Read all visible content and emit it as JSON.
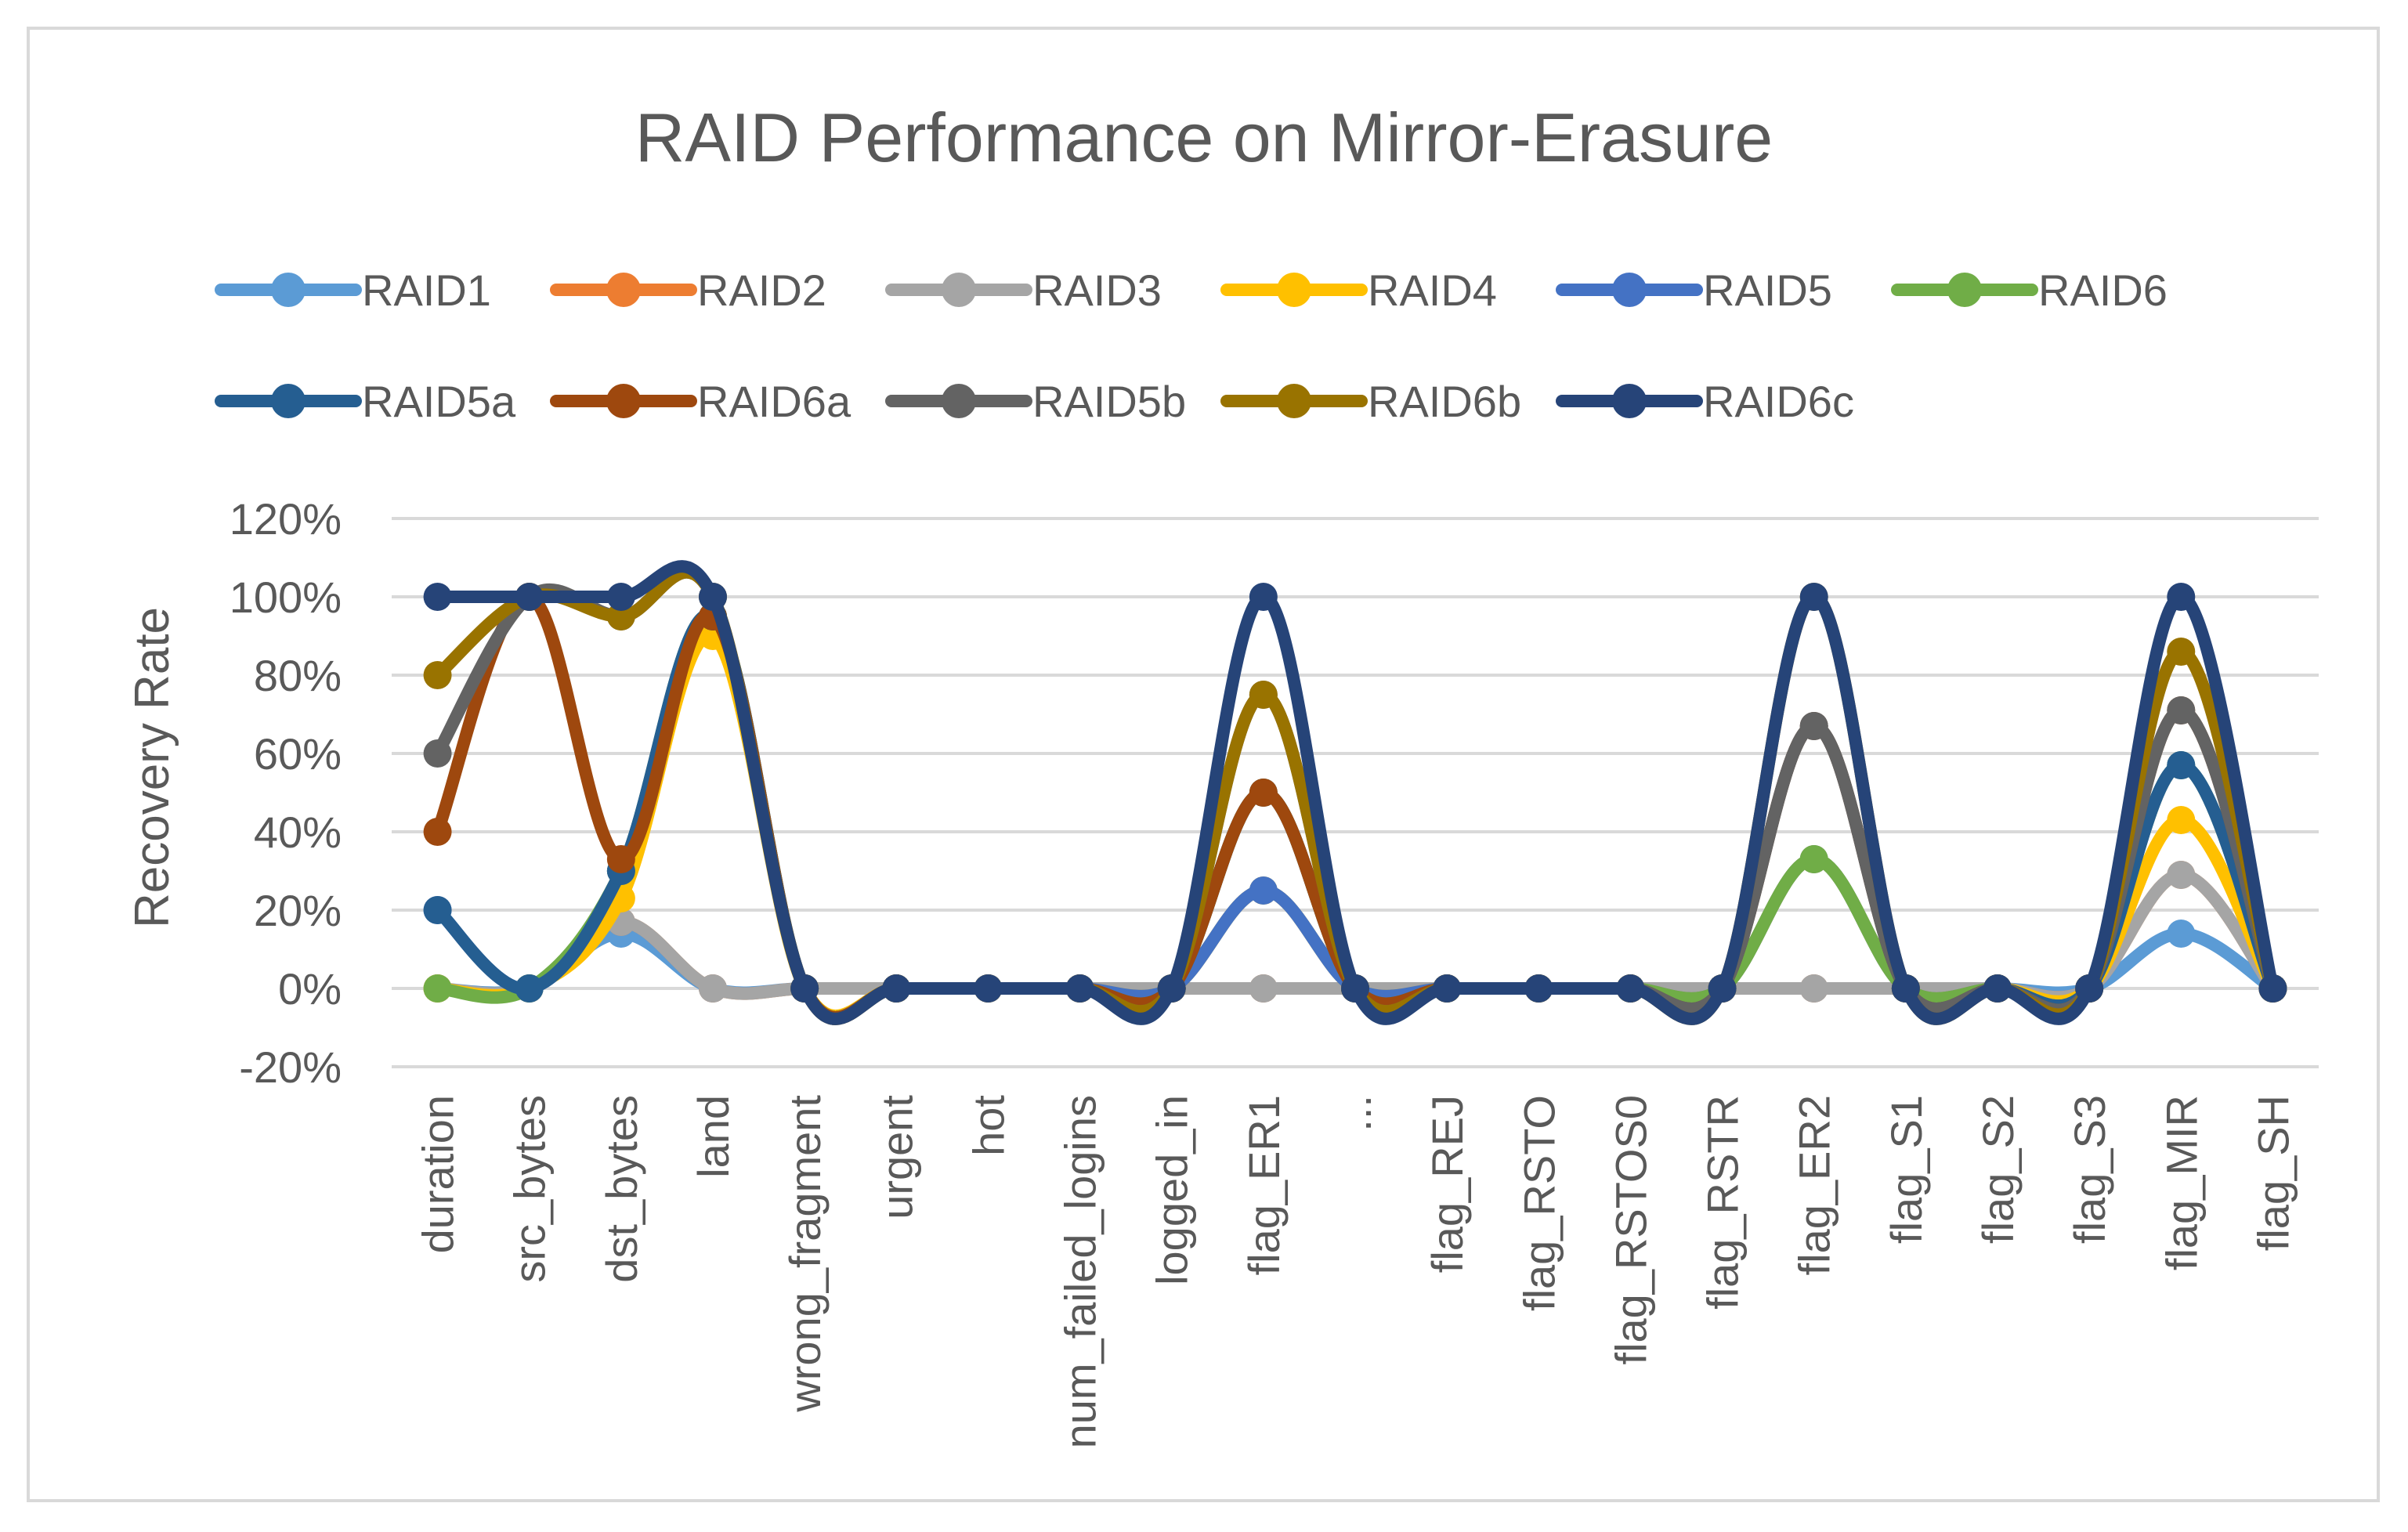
{
  "chart_data": {
    "type": "line",
    "title": "RAID Performance on Mirror-Erasure",
    "xlabel": "",
    "ylabel": "Recovery Rate",
    "ylim": [
      -0.2,
      1.2
    ],
    "yticks": [
      -0.2,
      0,
      0.2,
      0.4,
      0.6,
      0.8,
      1.0,
      1.2
    ],
    "ytick_labels": [
      "-20%",
      "0%",
      "20%",
      "40%",
      "60%",
      "80%",
      "100%",
      "120%"
    ],
    "grid": true,
    "legend_position": "top",
    "categories": [
      "duration",
      "src_bytes",
      "dst_bytes",
      "land",
      "wrong_fragment",
      "urgent",
      "hot",
      "num_failed_logins",
      "logged_in",
      "flag_ER1",
      "...",
      "flag_REJ",
      "flag_RSTO",
      "flag_RSTOS0",
      "flag_RSTR",
      "flag_ER2",
      "flag_S1",
      "flag_S2",
      "flag_S3",
      "flag_MIR",
      "flag_SH"
    ],
    "series": [
      {
        "name": "RAID1",
        "color": "#5B9BD5",
        "values": [
          0,
          0,
          0.14,
          0,
          0,
          0,
          0,
          0,
          0,
          0,
          0,
          0,
          0,
          0,
          0,
          0,
          0,
          0,
          0,
          0.14,
          0
        ]
      },
      {
        "name": "RAID2",
        "color": "#ED7D31",
        "values": [
          0,
          0,
          0.17,
          0,
          0,
          0,
          0,
          0,
          0,
          0,
          0,
          0,
          0,
          0,
          0,
          0,
          0,
          0,
          0,
          0.29,
          0
        ]
      },
      {
        "name": "RAID3",
        "color": "#A5A5A5",
        "values": [
          0,
          0,
          0.17,
          0,
          0,
          0,
          0,
          0,
          0,
          0,
          0,
          0,
          0,
          0,
          0,
          0,
          0,
          0,
          0,
          0.29,
          0
        ]
      },
      {
        "name": "RAID4",
        "color": "#FFC000",
        "values": [
          0,
          0,
          0.23,
          0.9,
          0,
          0,
          0,
          0,
          0,
          0.25,
          0,
          0,
          0,
          0,
          0,
          0.33,
          0,
          0,
          0,
          0.43,
          0
        ]
      },
      {
        "name": "RAID5",
        "color": "#4472C4",
        "values": [
          0.2,
          0,
          0.3,
          0.95,
          0,
          0,
          0,
          0,
          0,
          0.25,
          0,
          0,
          0,
          0,
          0,
          0.33,
          0,
          0,
          0,
          0.57,
          0
        ]
      },
      {
        "name": "RAID6",
        "color": "#70AD47",
        "values": [
          0,
          0,
          0.3,
          0.95,
          0,
          0,
          0,
          0,
          0,
          0.5,
          0,
          0,
          0,
          0,
          0,
          0.33,
          0,
          0,
          0,
          0.57,
          0
        ]
      },
      {
        "name": "RAID5a",
        "color": "#255E91",
        "values": [
          0.2,
          0,
          0.3,
          0.95,
          0,
          0,
          0,
          0,
          0,
          0.5,
          0,
          0,
          0,
          0,
          0,
          0.67,
          0,
          0,
          0,
          0.57,
          0
        ]
      },
      {
        "name": "RAID6a",
        "color": "#9E480E",
        "values": [
          0.4,
          1.0,
          0.33,
          0.95,
          0,
          0,
          0,
          0,
          0,
          0.5,
          0,
          0,
          0,
          0,
          0,
          0.67,
          0,
          0,
          0,
          0.71,
          0
        ]
      },
      {
        "name": "RAID5b",
        "color": "#636363",
        "values": [
          0.6,
          1.0,
          0.95,
          1.0,
          0,
          0,
          0,
          0,
          0,
          0.75,
          0,
          0,
          0,
          0,
          0,
          0.67,
          0,
          0,
          0,
          0.71,
          0
        ]
      },
      {
        "name": "RAID6b",
        "color": "#997300",
        "values": [
          0.8,
          1.0,
          0.95,
          1.0,
          0,
          0,
          0,
          0,
          0,
          0.75,
          0,
          0,
          0,
          0,
          0,
          1.0,
          0,
          0,
          0,
          0.86,
          0
        ]
      },
      {
        "name": "RAID6c",
        "color": "#264478",
        "values": [
          1.0,
          1.0,
          1.0,
          1.0,
          0,
          0,
          0,
          0,
          0,
          1.0,
          0,
          0,
          0,
          0,
          0,
          1.0,
          0,
          0,
          0,
          1.0,
          0
        ]
      }
    ]
  }
}
